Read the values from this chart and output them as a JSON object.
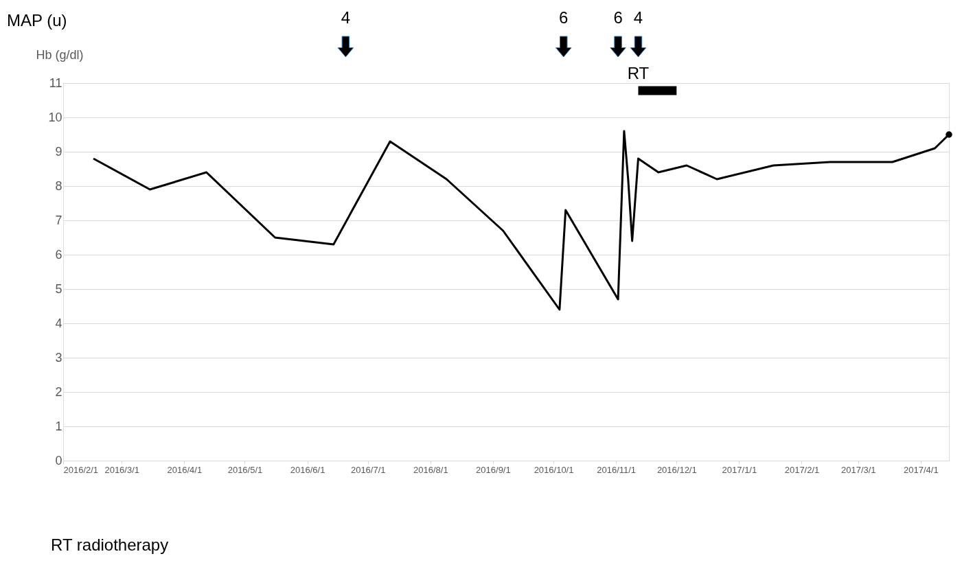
{
  "chart_data": {
    "type": "line",
    "ylabel": "Hb (g/dl)",
    "x": [
      "2016-02-16",
      "2016-03-15",
      "2016-04-12",
      "2016-05-16",
      "2016-06-14",
      "2016-07-12",
      "2016-08-09",
      "2016-09-06",
      "2016-10-04",
      "2016-10-07",
      "2016-11-02",
      "2016-11-05",
      "2016-11-07",
      "2016-11-09",
      "2016-11-12",
      "2016-11-22",
      "2016-12-06",
      "2016-12-21",
      "2017-01-18",
      "2017-02-15",
      "2017-03-18",
      "2017-04-08",
      "2017-04-15"
    ],
    "series": [
      {
        "color": "#000000",
        "values": [
          8.8,
          7.9,
          8.4,
          6.5,
          6.3,
          9.3,
          8.2,
          6.7,
          4.4,
          7.3,
          4.7,
          9.6,
          8.2,
          6.4,
          8.8,
          8.4,
          8.6,
          8.2,
          8.6,
          8.7,
          8.7,
          9.1,
          9.5
        ]
      },
      {
        "type": "scatter",
        "color": "#000000",
        "x": [
          "2017-04-15"
        ],
        "values": [
          9.5
        ]
      }
    ],
    "xlim": [
      "2016-02-01",
      "2017-04-15"
    ],
    "xticks": [
      {
        "value": "2016-02-01",
        "label": "2016/2/1"
      },
      {
        "value": "2016-03-01",
        "label": "2016/3/1"
      },
      {
        "value": "2016-04-01",
        "label": "2016/4/1"
      },
      {
        "value": "2016-05-01",
        "label": "2016/5/1"
      },
      {
        "value": "2016-06-01",
        "label": "2016/6/1"
      },
      {
        "value": "2016-07-01",
        "label": "2016/7/1"
      },
      {
        "value": "2016-08-01",
        "label": "2016/8/1"
      },
      {
        "value": "2016-09-01",
        "label": "2016/9/1"
      },
      {
        "value": "2016-10-01",
        "label": "2016/10/1"
      },
      {
        "value": "2016-11-01",
        "label": "2016/11/1"
      },
      {
        "value": "2016-12-01",
        "label": "2016/12/1"
      },
      {
        "value": "2017-01-01",
        "label": "2017/1/1"
      },
      {
        "value": "2017-02-01",
        "label": "2017/2/1"
      },
      {
        "value": "2017-03-01",
        "label": "2017/3/1"
      },
      {
        "value": "2017-04-01",
        "label": "2017/4/1"
      }
    ],
    "ylim": [
      0,
      11
    ],
    "yticks": [
      0,
      1,
      2,
      3,
      4,
      5,
      6,
      7,
      8,
      9,
      10,
      11
    ],
    "grid": "y",
    "line_style": "solid",
    "annotations": [
      "MAP (u)",
      "4",
      "6",
      "6",
      "4",
      "RT",
      "RT radiotherapy"
    ]
  }
}
